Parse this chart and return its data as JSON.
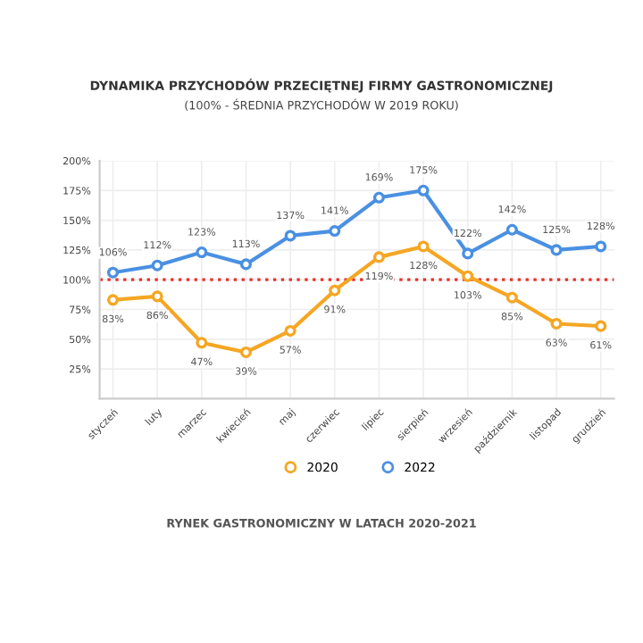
{
  "chart_data": {
    "type": "line",
    "title": "DYNAMIKA PRZYCHODÓW PRZECIĘTNEJ FIRMY GASTRONOMICZNEJ",
    "subtitle": "(100% - ŚREDNIA PRZYCHODÓW W 2019 ROKU)",
    "categories": [
      "styczeń",
      "luty",
      "marzec",
      "kwiecień",
      "maj",
      "czerwiec",
      "lipiec",
      "sierpień",
      "wrzesień",
      "październik",
      "listopad",
      "grudzień"
    ],
    "series": [
      {
        "name": "2020",
        "color": "#f5a623",
        "values": [
          83,
          86,
          47,
          39,
          57,
          91,
          119,
          128,
          103,
          85,
          63,
          61
        ],
        "value_labels": [
          "83%",
          "86%",
          "47%",
          "39%",
          "57%",
          "91%",
          "119%",
          "128%",
          "103%",
          "85%",
          "63%",
          "61%"
        ]
      },
      {
        "name": "2022",
        "color": "#4a90e2",
        "values": [
          106,
          112,
          123,
          113,
          137,
          141,
          169,
          175,
          122,
          142,
          125,
          128
        ],
        "value_labels": [
          "106%",
          "112%",
          "123%",
          "113%",
          "137%",
          "141%",
          "169%",
          "175%",
          "122%",
          "142%",
          "125%",
          "128%"
        ]
      }
    ],
    "ylim": [
      0,
      200
    ],
    "yticks": [
      {
        "value": 25,
        "label": "25%"
      },
      {
        "value": 50,
        "label": "50%"
      },
      {
        "value": 75,
        "label": "75%"
      },
      {
        "value": 100,
        "label": "100%"
      },
      {
        "value": 125,
        "label": "125%"
      },
      {
        "value": 150,
        "label": "150%"
      },
      {
        "value": 175,
        "label": "175%"
      },
      {
        "value": 200,
        "label": "200%"
      }
    ],
    "ref_lines": [
      {
        "axis": "y",
        "value": 100,
        "color": "#e8302a",
        "line_style": "dotted"
      }
    ],
    "grid": true,
    "legend": "bottom",
    "marker": "circle",
    "line_style": "solid",
    "annotations": [
      "RYNEK GASTRONOMICZNY W LATACH 2020-2021"
    ]
  }
}
